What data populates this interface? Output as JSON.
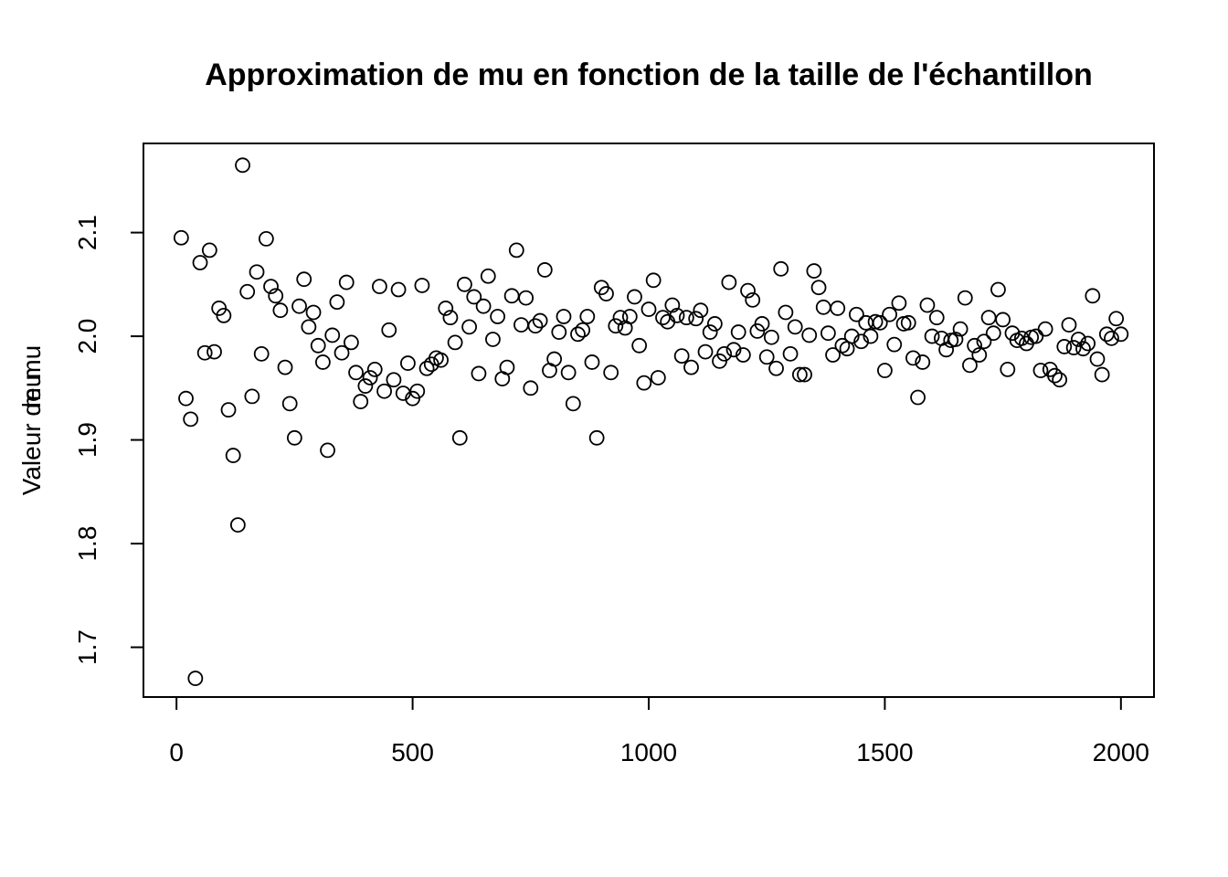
{
  "chart_data": {
    "type": "scatter",
    "title": "Approximation de mu en fonction de la taille de l'échantillon",
    "xlabel": "",
    "ylabel_overlap": [
      "Valeur de mu",
      "mu"
    ],
    "xlim": [
      -70,
      2070
    ],
    "ylim": [
      1.652,
      2.186
    ],
    "x_ticks": [
      0,
      500,
      1000,
      1500,
      2000
    ],
    "y_ticks": [
      1.7,
      1.8,
      1.9,
      2.0,
      2.1
    ],
    "x_tick_labels": [
      "0",
      "500",
      "1000",
      "1500",
      "2000"
    ],
    "y_tick_labels": [
      "1.7",
      "1.8",
      "1.9",
      "2.0",
      "2.1"
    ],
    "grid": false,
    "marker": "open-circle",
    "color": "#000000",
    "x_start": 10,
    "x_step": 10,
    "y": [
      2.095,
      1.94,
      1.92,
      1.67,
      2.071,
      1.984,
      2.083,
      1.985,
      2.027,
      2.02,
      1.929,
      1.885,
      1.818,
      2.165,
      2.043,
      1.942,
      2.062,
      1.983,
      2.094,
      2.048,
      2.039,
      2.025,
      1.97,
      1.935,
      1.902,
      2.029,
      2.055,
      2.009,
      2.023,
      1.991,
      1.975,
      1.89,
      2.001,
      2.033,
      1.984,
      2.052,
      1.994,
      1.965,
      1.937,
      1.952,
      1.96,
      1.968,
      2.048,
      1.947,
      2.006,
      1.958,
      2.045,
      1.945,
      1.974,
      1.94,
      1.947,
      2.049,
      1.969,
      1.973,
      1.979,
      1.977,
      2.027,
      2.018,
      1.994,
      1.902,
      2.05,
      2.009,
      2.038,
      1.964,
      2.029,
      2.058,
      1.997,
      2.019,
      1.959,
      1.97,
      2.039,
      2.083,
      2.011,
      2.037,
      1.95,
      2.01,
      2.015,
      2.064,
      1.967,
      1.978,
      2.004,
      2.019,
      1.965,
      1.935,
      2.002,
      2.006,
      2.019,
      1.975,
      1.902,
      2.047,
      2.041,
      1.965,
      2.01,
      2.018,
      2.008,
      2.019,
      2.038,
      1.991,
      1.955,
      2.026,
      2.054,
      1.96,
      2.018,
      2.014,
      2.03,
      2.02,
      1.981,
      2.018,
      1.97,
      2.017,
      2.025,
      1.985,
      2.004,
      2.012,
      1.976,
      1.983,
      2.052,
      1.987,
      2.004,
      1.982,
      2.044,
      2.035,
      2.005,
      2.012,
      1.98,
      1.999,
      1.969,
      2.065,
      2.023,
      1.983,
      2.009,
      1.963,
      1.963,
      2.001,
      2.063,
      2.047,
      2.028,
      2.003,
      1.982,
      2.027,
      1.991,
      1.988,
      2.0,
      2.021,
      1.995,
      2.013,
      2.0,
      2.014,
      2.013,
      1.967,
      2.021,
      1.992,
      2.032,
      2.012,
      2.013,
      1.979,
      1.941,
      1.975,
      2.03,
      2.0,
      2.018,
      1.998,
      1.987,
      1.996,
      1.997,
      2.007,
      2.037,
      1.972,
      1.991,
      1.982,
      1.995,
      2.018,
      2.003,
      2.045,
      2.016,
      1.968,
      2.003,
      1.996,
      1.998,
      1.993,
      1.999,
      2.0,
      1.967,
      2.007,
      1.968,
      1.962,
      1.958,
      1.99,
      2.011,
      1.989,
      1.997,
      1.988,
      1.993,
      2.039,
      1.978,
      1.963,
      2.002,
      1.998,
      2.017,
      2.002
    ]
  }
}
